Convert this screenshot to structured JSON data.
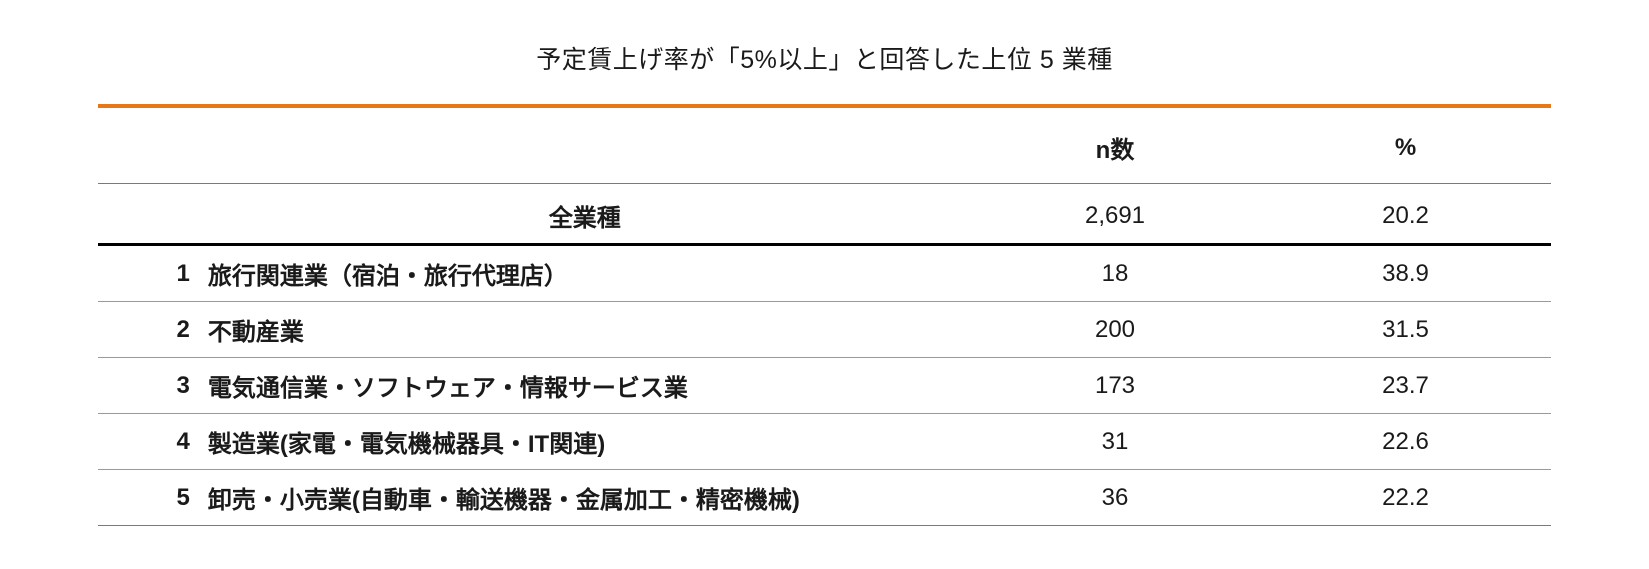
{
  "title": "予定賃上げ率が「5%以上」と回答した上位 5 業種",
  "columns": {
    "rank": "",
    "name": "",
    "n": "n数",
    "pct": "%"
  },
  "total_row": {
    "name": "全業種",
    "n": "2,691",
    "pct": "20.2"
  },
  "rows": [
    {
      "rank": "1",
      "name": "旅行関連業（宿泊・旅行代理店）",
      "n": "18",
      "pct": "38.9"
    },
    {
      "rank": "2",
      "name": "不動産業",
      "n": "200",
      "pct": "31.5"
    },
    {
      "rank": "3",
      "name": "電気通信業・ソフトウェア・情報サービス業",
      "n": "173",
      "pct": "23.7"
    },
    {
      "rank": "4",
      "name": "製造業(家電・電気機械器具・IT関連)",
      "n": "31",
      "pct": "22.6"
    },
    {
      "rank": "5",
      "name": "卸売・小売業(自動車・輸送機器・金属加工・精密機械)",
      "n": "36",
      "pct": "22.2"
    }
  ],
  "style": {
    "accent_color": "#e67817",
    "text_color": "#1a1a1a",
    "row_border_color": "#9a9a9a",
    "heavy_border_color": "#000000",
    "title_fontsize": 25,
    "header_fontsize": 24,
    "cell_fontsize": 24,
    "background_color": "#ffffff"
  }
}
